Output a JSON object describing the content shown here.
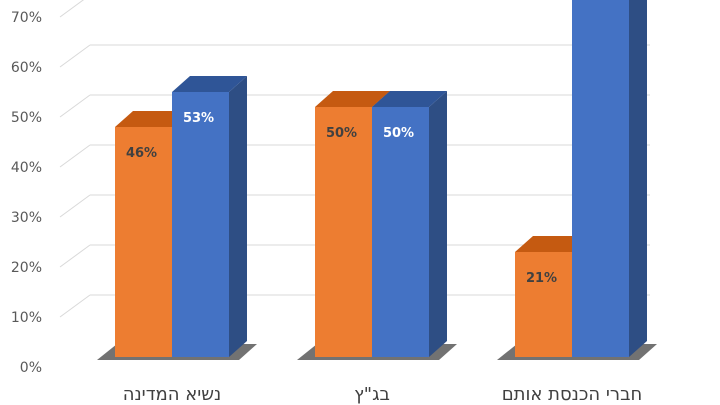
{
  "chart_data": {
    "type": "bar",
    "categories": [
      "נשיא המדינה",
      "בג\"ץ",
      "חברי הכנסת אותם"
    ],
    "series": [
      {
        "values": [
          46,
          50,
          21
        ],
        "labels": [
          "46%",
          "50%",
          "21%"
        ]
      },
      {
        "values": [
          53,
          50,
          75
        ],
        "labels": [
          "53%",
          "50%",
          ""
        ]
      }
    ],
    "ylim": [
      0,
      70
    ],
    "yticks": [
      {
        "value": 0,
        "label": "0%"
      },
      {
        "value": 10,
        "label": "10%"
      },
      {
        "value": 20,
        "label": "20%"
      },
      {
        "value": 30,
        "label": "30%"
      },
      {
        "value": 40,
        "label": "40%"
      },
      {
        "value": 50,
        "label": "50%"
      },
      {
        "value": 60,
        "label": "60%"
      },
      {
        "value": 70,
        "label": "70%"
      }
    ],
    "grid": true,
    "style": "3d-clustered-column",
    "colors": {
      "series1_front": "#ED7D31",
      "series1_top": "#C55A11",
      "series1_side": "#B85410",
      "series2_front": "#4472C4",
      "series2_top": "#2F5597",
      "series2_side": "#2E4E84",
      "gridline": "#D9D9D9",
      "floor": "#595959",
      "tick_text": "#595959",
      "category_text": "#404040",
      "label_dark": "#404040",
      "label_light": "#FFFFFF"
    }
  }
}
